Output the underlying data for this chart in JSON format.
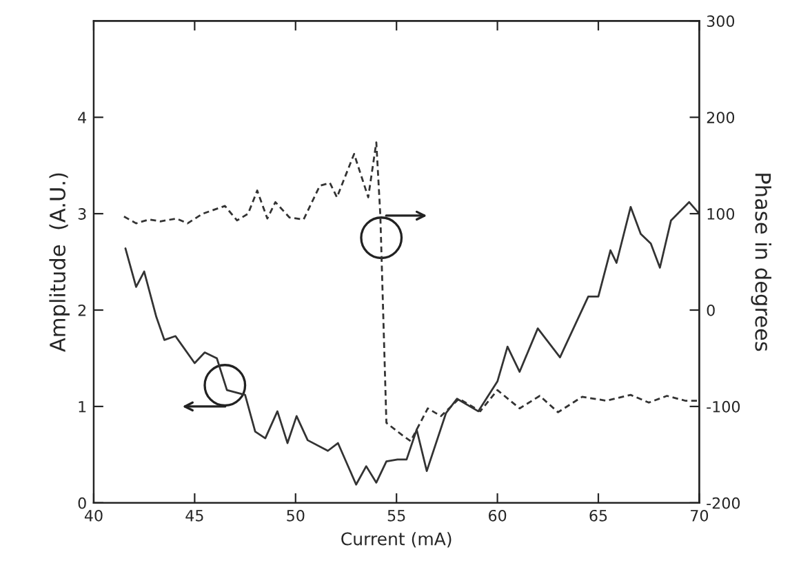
{
  "chart_data": {
    "type": "line",
    "xlabel": "Current (mA)",
    "ylabel": "Amplitude  (A.U.)",
    "y2label": "Phase in degrees",
    "xlim": [
      40,
      70
    ],
    "xticks": [
      40,
      45,
      50,
      55,
      60,
      65,
      70
    ],
    "ylim": [
      0,
      5
    ],
    "yticks": [
      0,
      1,
      2,
      3,
      4
    ],
    "y2lim": [
      -200,
      300
    ],
    "y2ticks": [
      -200,
      -100,
      0,
      100,
      200,
      300
    ],
    "grid": false,
    "legend": false,
    "marker": "none",
    "series": [
      {
        "color": "#333333",
        "line_style": "solid",
        "x": [
          41.57,
          42.1,
          42.5,
          43.1,
          43.5,
          44.05,
          45.0,
          45.5,
          46.1,
          46.6,
          47.5,
          48.0,
          48.5,
          49.1,
          49.6,
          50.05,
          50.6,
          51.6,
          52.1,
          53.0,
          53.5,
          54.0,
          54.5,
          55.05,
          55.5,
          56.0,
          56.5,
          57.45,
          58.0,
          59.05,
          60.0,
          60.5,
          61.1,
          62.0,
          63.1,
          64.5,
          65.0,
          65.6,
          65.9,
          66.6,
          67.1,
          67.6,
          68.05,
          68.6,
          69.5,
          70.0
        ],
        "values": [
          2.64,
          2.24,
          2.4,
          1.93,
          1.69,
          1.73,
          1.45,
          1.56,
          1.5,
          1.17,
          1.12,
          0.74,
          0.67,
          0.95,
          0.62,
          0.9,
          0.65,
          0.54,
          0.62,
          0.19,
          0.38,
          0.21,
          0.43,
          0.45,
          0.45,
          0.76,
          0.33,
          0.93,
          1.08,
          0.95,
          1.26,
          1.62,
          1.36,
          1.81,
          1.51,
          2.14,
          2.14,
          2.62,
          2.49,
          3.07,
          2.79,
          2.69,
          2.44,
          2.93,
          3.12,
          3.0
        ]
      },
      {
        "color": "#333333",
        "line_style": "dashed",
        "axis": "y2",
        "x": [
          41.5,
          42.1,
          42.75,
          43.3,
          44.1,
          44.65,
          45.4,
          46.5,
          47.1,
          47.65,
          48.1,
          48.6,
          49.0,
          49.7,
          50.4,
          51.2,
          51.7,
          52.05,
          52.9,
          53.6,
          54.0,
          54.2,
          54.5,
          55.3,
          55.7,
          56.55,
          57.2,
          58.1,
          59.15,
          60.0,
          61.1,
          62.1,
          63.0,
          64.2,
          65.4,
          66.6,
          67.5,
          68.4,
          69.3,
          70.0
        ],
        "values": [
          97,
          90,
          94,
          92,
          95,
          90,
          100,
          108,
          93,
          100,
          124,
          95,
          112,
          96,
          94,
          129,
          132,
          117,
          162,
          117,
          174,
          98,
          -117,
          -130,
          -136,
          -102,
          -110,
          -92,
          -105,
          -83,
          -102,
          -89,
          -106,
          -90,
          -94,
          -88,
          -96,
          -89,
          -94,
          -94
        ]
      }
    ]
  }
}
